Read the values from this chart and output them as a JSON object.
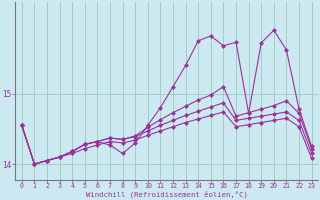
{
  "xlabel": "Windchill (Refroidissement éolien,°C)",
  "bg_color": "#cce8f0",
  "grid_color": "#99ccbb",
  "line_color": "#993399",
  "xlim": [
    -0.5,
    23.5
  ],
  "ylim": [
    13.78,
    16.3
  ],
  "yticks": [
    14,
    15
  ],
  "xticks": [
    0,
    1,
    2,
    3,
    4,
    5,
    6,
    7,
    8,
    9,
    10,
    11,
    12,
    13,
    14,
    15,
    16,
    17,
    18,
    19,
    20,
    21,
    22,
    23
  ],
  "line1": [
    14.55,
    14.0,
    14.05,
    14.1,
    14.18,
    14.28,
    14.32,
    14.27,
    14.15,
    14.3,
    14.55,
    14.8,
    15.1,
    15.4,
    15.75,
    15.82,
    15.68,
    15.73,
    14.72,
    15.72,
    15.9,
    15.62,
    14.78,
    14.25
  ],
  "line2": [
    14.55,
    14.0,
    14.05,
    14.1,
    14.18,
    14.28,
    14.32,
    14.37,
    14.35,
    14.4,
    14.52,
    14.63,
    14.73,
    14.82,
    14.91,
    14.98,
    15.1,
    14.68,
    14.73,
    14.78,
    14.83,
    14.9,
    14.72,
    14.22
  ],
  "line3": [
    14.55,
    14.0,
    14.05,
    14.1,
    14.18,
    14.28,
    14.32,
    14.37,
    14.35,
    14.39,
    14.47,
    14.55,
    14.62,
    14.69,
    14.75,
    14.81,
    14.87,
    14.62,
    14.65,
    14.68,
    14.71,
    14.74,
    14.62,
    14.15
  ],
  "line4": [
    14.55,
    14.0,
    14.05,
    14.1,
    14.15,
    14.22,
    14.27,
    14.32,
    14.3,
    14.34,
    14.41,
    14.47,
    14.53,
    14.59,
    14.64,
    14.69,
    14.74,
    14.53,
    14.56,
    14.59,
    14.62,
    14.65,
    14.53,
    14.08
  ]
}
